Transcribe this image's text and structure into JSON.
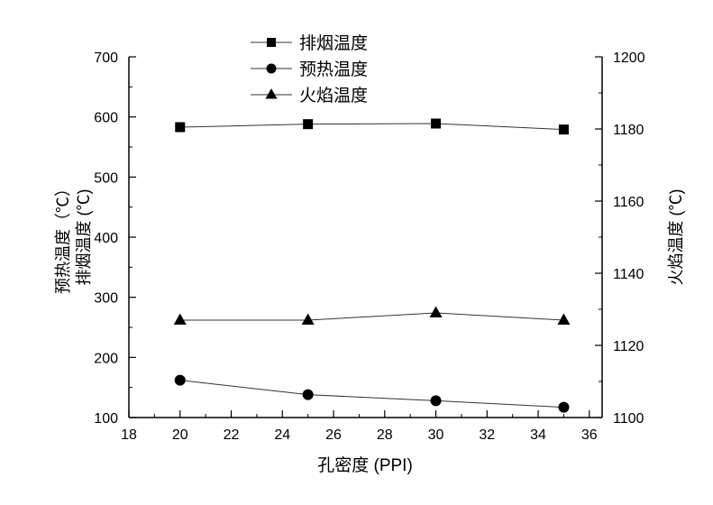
{
  "chart_data": {
    "type": "line",
    "title": "",
    "xlabel": "孔密度 (PPI)",
    "ylabel_left": [
      "预热温度（℃）",
      "排烟温度 (℃)"
    ],
    "ylabel_right": "火焰温度 (℃)",
    "xlim": [
      18,
      36.5
    ],
    "ylim_left": [
      100,
      700
    ],
    "ylim_right": [
      1100,
      1200
    ],
    "x_ticks": [
      "18",
      "20",
      "22",
      "24",
      "26",
      "28",
      "30",
      "32",
      "34",
      "36"
    ],
    "y_left_ticks": [
      "100",
      "200",
      "300",
      "400",
      "500",
      "600",
      "700"
    ],
    "y_right_ticks": [
      "1100",
      "1120",
      "1140",
      "1160",
      "1180",
      "1200"
    ],
    "x": [
      20,
      25,
      30,
      35
    ],
    "series": [
      {
        "name": "排烟温度",
        "marker": "square",
        "axis": "left",
        "values": [
          583,
          588,
          589,
          579
        ]
      },
      {
        "name": "预热温度",
        "marker": "circle",
        "axis": "left",
        "values": [
          162,
          138,
          128,
          117
        ]
      },
      {
        "name": "火焰温度",
        "marker": "triangle",
        "axis": "right",
        "values": [
          1127,
          1127,
          1129,
          1127
        ]
      }
    ],
    "legend_position": "top-center",
    "grid": false
  }
}
